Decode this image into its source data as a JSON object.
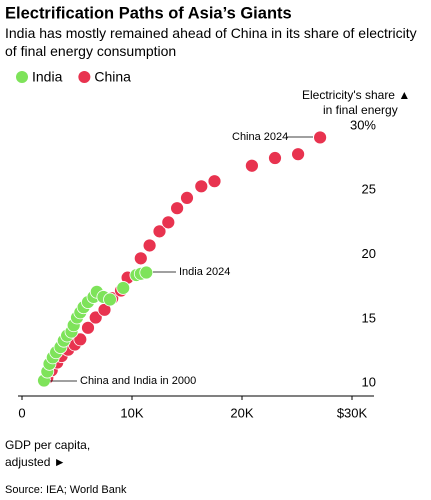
{
  "chart_data": {
    "type": "scatter",
    "title": "Electrification Paths of Asia’s Giants",
    "subtitle": "India has mostly remained ahead of China in its share of electricity of final energy consumption",
    "y_label": [
      "Electricity's share ▲",
      "in final energy"
    ],
    "x_label": [
      "GDP per capita,",
      "adjusted ►"
    ],
    "source": "Source: IEA; World Bank",
    "annotations": [
      "China 2024",
      "India 2024",
      "China and India in 2000"
    ],
    "xlim": [
      0,
      32000
    ],
    "ylim": [
      9,
      31
    ],
    "xticks": [
      0,
      {
        "value": 10000,
        "label": "10K"
      },
      {
        "value": 20000,
        "label": "20K"
      },
      {
        "value": 30000,
        "label": "$30K"
      }
    ],
    "yticks": [
      10,
      15,
      20,
      25,
      {
        "value": 30,
        "label": "30%"
      }
    ],
    "grid": false,
    "series": [
      {
        "name": "India",
        "color": "#7ee35a",
        "x": [
          2000,
          2300,
          2500,
          2800,
          3100,
          3500,
          3800,
          4100,
          4500,
          4700,
          5000,
          5300,
          5600,
          6000,
          6500,
          6800,
          7400,
          8000,
          9200,
          10400,
          10800,
          11300
        ],
        "values": [
          10.2,
          10.9,
          11.5,
          12.0,
          12.4,
          12.8,
          13.3,
          13.7,
          14.0,
          14.5,
          15.1,
          15.5,
          15.9,
          16.3,
          16.7,
          17.1,
          16.7,
          16.5,
          17.4,
          18.4,
          18.5,
          18.6
        ]
      },
      {
        "name": "China",
        "color": "#e8334f",
        "x": [
          2300,
          2700,
          3200,
          3600,
          4200,
          4800,
          5300,
          6000,
          6700,
          7500,
          8200,
          9000,
          9600,
          10800,
          11600,
          12500,
          13300,
          14100,
          15000,
          16300,
          17500,
          20900,
          23000,
          25100,
          27100
        ],
        "values": [
          10.4,
          11.0,
          11.6,
          12.1,
          12.6,
          13.0,
          13.4,
          14.3,
          15.1,
          15.7,
          16.6,
          17.2,
          18.2,
          19.7,
          20.7,
          21.8,
          22.5,
          23.6,
          24.4,
          25.3,
          25.7,
          26.9,
          27.5,
          27.8,
          29.1
        ]
      }
    ]
  }
}
